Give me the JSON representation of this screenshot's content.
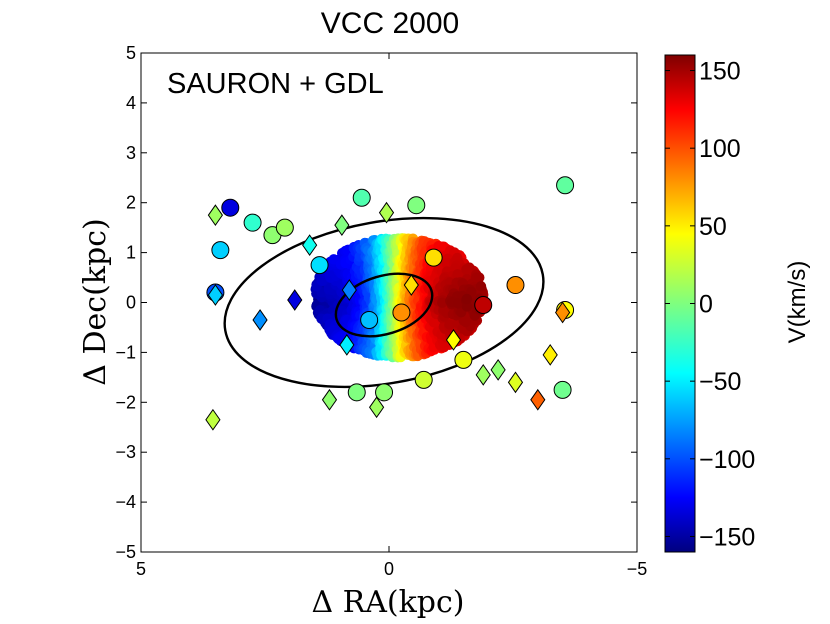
{
  "chart_data": {
    "type": "scatter",
    "title": "VCC 2000",
    "annotation": "SAURON + GDL",
    "xlabel": "Δ RA(kpc)",
    "ylabel": "Δ Dec(kpc)",
    "xlim": [
      5,
      -5
    ],
    "ylim": [
      -5,
      5
    ],
    "x_ticks": [
      5,
      0,
      -5
    ],
    "x_tick_labels": [
      "5",
      "0",
      "−5"
    ],
    "y_ticks": [
      -5,
      -4,
      -3,
      -2,
      -1,
      0,
      1,
      2,
      3,
      4,
      5
    ],
    "y_tick_labels": [
      "−5",
      "−4",
      "−3",
      "−2",
      "−1",
      "0",
      "1",
      "2",
      "3",
      "4",
      "5"
    ],
    "colorbar": {
      "label": "V(km/s)",
      "range": [
        -160,
        160
      ],
      "colormap": "jet",
      "ticks": [
        -150,
        -100,
        -50,
        0,
        50,
        100,
        150
      ],
      "tick_labels": [
        "−150",
        "−100",
        "−50",
        "0",
        "50",
        "100",
        "150"
      ]
    },
    "ellipses": [
      {
        "name": "inner-isophote",
        "center": [
          0.1,
          -0.05
        ],
        "semi_major_kpc": 1.0,
        "semi_minor_kpc": 0.58,
        "pa_deg": -17
      },
      {
        "name": "outer-isophote",
        "center": [
          0.1,
          0.0
        ],
        "semi_major_kpc": 3.25,
        "semi_minor_kpc": 1.62,
        "pa_deg": -10
      }
    ],
    "ifu_field": {
      "name": "sauron-velocity-field",
      "x_range": [
        -1.9,
        1.5
      ],
      "y_range": [
        -1.1,
        1.3
      ],
      "v_amplitude": 155,
      "note": "rotating disk: receding (red) at negative dRA, approaching (blue) at positive dRA"
    },
    "series": [
      {
        "name": "GC circles",
        "marker": "circle",
        "points": [
          {
            "x": 3.2,
            "y": 1.9,
            "v": -130
          },
          {
            "x": 2.75,
            "y": 1.6,
            "v": -25
          },
          {
            "x": 3.4,
            "y": 1.05,
            "v": -55
          },
          {
            "x": 2.35,
            "y": 1.35,
            "v": 5
          },
          {
            "x": 2.1,
            "y": 1.5,
            "v": 10
          },
          {
            "x": 1.4,
            "y": 0.75,
            "v": -50
          },
          {
            "x": 3.5,
            "y": 0.2,
            "v": -95
          },
          {
            "x": 0.55,
            "y": 2.1,
            "v": -15
          },
          {
            "x": -0.55,
            "y": 1.95,
            "v": 0
          },
          {
            "x": -0.9,
            "y": 0.9,
            "v": 50
          },
          {
            "x": 0.4,
            "y": -0.35,
            "v": -60
          },
          {
            "x": -0.25,
            "y": -0.2,
            "v": 75
          },
          {
            "x": -1.9,
            "y": -0.05,
            "v": 140
          },
          {
            "x": -2.55,
            "y": 0.35,
            "v": 75
          },
          {
            "x": -3.55,
            "y": -0.15,
            "v": 40
          },
          {
            "x": -3.55,
            "y": 2.35,
            "v": -10
          },
          {
            "x": -1.5,
            "y": -1.15,
            "v": 35
          },
          {
            "x": -0.7,
            "y": -1.55,
            "v": 25
          },
          {
            "x": 0.1,
            "y": -1.8,
            "v": 5
          },
          {
            "x": 0.65,
            "y": -1.8,
            "v": 0
          },
          {
            "x": -3.5,
            "y": -1.75,
            "v": -5
          }
        ]
      },
      {
        "name": "PN diamonds",
        "marker": "diamond",
        "points": [
          {
            "x": 3.5,
            "y": 1.75,
            "v": 10
          },
          {
            "x": 3.5,
            "y": 0.15,
            "v": -55
          },
          {
            "x": 2.6,
            "y": -0.35,
            "v": -75
          },
          {
            "x": 1.9,
            "y": 0.05,
            "v": -130
          },
          {
            "x": 1.6,
            "y": 1.15,
            "v": -35
          },
          {
            "x": 0.95,
            "y": 1.55,
            "v": 0
          },
          {
            "x": 0.05,
            "y": 1.8,
            "v": 15
          },
          {
            "x": 0.85,
            "y": -0.85,
            "v": -45
          },
          {
            "x": 0.8,
            "y": 0.25,
            "v": -80
          },
          {
            "x": -0.45,
            "y": 0.35,
            "v": 50
          },
          {
            "x": -1.3,
            "y": -0.75,
            "v": 40
          },
          {
            "x": -1.9,
            "y": -1.45,
            "v": 10
          },
          {
            "x": -2.2,
            "y": -1.35,
            "v": 5
          },
          {
            "x": -2.55,
            "y": -1.6,
            "v": 30
          },
          {
            "x": -3.25,
            "y": -1.05,
            "v": 45
          },
          {
            "x": -3.5,
            "y": -0.2,
            "v": 75
          },
          {
            "x": -3.0,
            "y": -1.95,
            "v": 90
          },
          {
            "x": 1.2,
            "y": -1.95,
            "v": 5
          },
          {
            "x": 0.25,
            "y": -2.1,
            "v": 10
          },
          {
            "x": 3.55,
            "y": -2.35,
            "v": 20
          }
        ]
      }
    ]
  }
}
